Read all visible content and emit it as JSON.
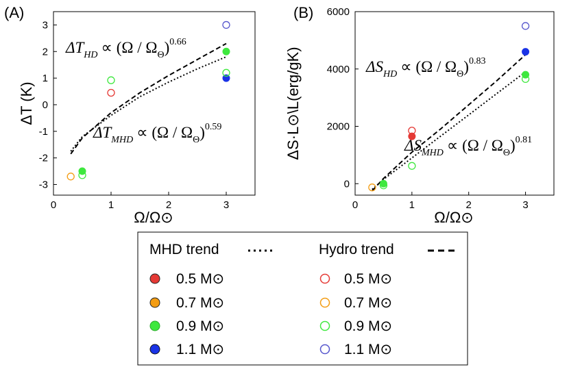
{
  "chart_data": [
    {
      "panel": "(A)",
      "type": "scatter",
      "xlabel": "Ω/Ω⊙",
      "ylabel": "ΔT (K)",
      "xlim": [
        0,
        3.5
      ],
      "ylim": [
        -3.4,
        3.5
      ],
      "xticks": [
        "0",
        "1",
        "2",
        "3"
      ],
      "yticks": [
        "-3",
        "-2",
        "-1",
        "0",
        "1",
        "2",
        "3"
      ],
      "series": [
        {
          "name": "0.5 M⊙ MHD",
          "kind": "mhd",
          "color": "#e53935",
          "points": []
        },
        {
          "name": "0.7 M⊙ MHD",
          "kind": "mhd",
          "color": "#f39c12",
          "points": []
        },
        {
          "name": "0.9 M⊙ MHD",
          "kind": "mhd",
          "color": "#3ee83e",
          "points": [
            [
              0.5,
              -2.5
            ],
            [
              3,
              2.0
            ]
          ]
        },
        {
          "name": "1.1 M⊙ MHD",
          "kind": "mhd",
          "color": "#1a33e6",
          "points": [
            [
              3,
              1.0
            ]
          ]
        },
        {
          "name": "0.5 M⊙ Hydro",
          "kind": "hydro",
          "color": "#e53935",
          "points": [
            [
              1,
              0.45
            ]
          ]
        },
        {
          "name": "0.7 M⊙ Hydro",
          "kind": "hydro",
          "color": "#f39c12",
          "points": [
            [
              0.3,
              -2.7
            ]
          ]
        },
        {
          "name": "0.9 M⊙ Hydro",
          "kind": "hydro",
          "color": "#3ee83e",
          "points": [
            [
              0.5,
              -2.65
            ],
            [
              1,
              0.92
            ],
            [
              3,
              1.2
            ]
          ]
        },
        {
          "name": "1.1 M⊙ Hydro",
          "kind": "hydro",
          "color": "#5555cc",
          "points": [
            [
              3,
              3.0
            ]
          ]
        }
      ],
      "trends": [
        {
          "name": "Hydro trend",
          "style": "dashed",
          "points": [
            [
              0.3,
              -1.85
            ],
            [
              0.5,
              -1.25
            ],
            [
              1,
              -0.3
            ],
            [
              1.5,
              0.45
            ],
            [
              2,
              1.1
            ],
            [
              2.5,
              1.7
            ],
            [
              3,
              2.3
            ]
          ]
        },
        {
          "name": "MHD trend",
          "style": "dotted",
          "points": [
            [
              0.3,
              -1.75
            ],
            [
              0.5,
              -1.2
            ],
            [
              1,
              -0.4
            ],
            [
              1.5,
              0.3
            ],
            [
              2,
              0.85
            ],
            [
              2.5,
              1.35
            ],
            [
              3,
              1.8
            ]
          ]
        }
      ],
      "annotations": [
        {
          "lhs": "ΔT",
          "sub": "HD",
          "rhs": "∝ (Ω / Ω",
          "theta": "Θ",
          "close": ")",
          "exp": "0.66"
        },
        {
          "lhs": "ΔT",
          "sub": "MHD",
          "rhs": "∝ (Ω / Ω",
          "theta": "Θ",
          "close": ")",
          "exp": "0.59"
        }
      ]
    },
    {
      "panel": "(B)",
      "type": "scatter",
      "xlabel": "Ω/Ω⊙",
      "ylabel": "ΔS·L⊙\\L(erg/gK)",
      "xlim": [
        0,
        3.5
      ],
      "ylim": [
        -400,
        6000
      ],
      "xticks": [
        "0",
        "1",
        "2",
        "3"
      ],
      "yticks": [
        "0",
        "2000",
        "4000",
        "6000"
      ],
      "series": [
        {
          "name": "0.5 M⊙ MHD",
          "kind": "mhd",
          "color": "#e53935",
          "points": [
            [
              1,
              1650
            ]
          ]
        },
        {
          "name": "0.7 M⊙ MHD",
          "kind": "mhd",
          "color": "#f39c12",
          "points": []
        },
        {
          "name": "0.9 M⊙ MHD",
          "kind": "mhd",
          "color": "#3ee83e",
          "points": [
            [
              0.5,
              0
            ],
            [
              3,
              3800
            ]
          ]
        },
        {
          "name": "1.1 M⊙ MHD",
          "kind": "mhd",
          "color": "#1a33e6",
          "points": [
            [
              3,
              4600
            ]
          ]
        },
        {
          "name": "0.5 M⊙ Hydro",
          "kind": "hydro",
          "color": "#e53935",
          "points": [
            [
              1,
              1850
            ]
          ]
        },
        {
          "name": "0.7 M⊙ Hydro",
          "kind": "hydro",
          "color": "#f39c12",
          "points": [
            [
              0.3,
              -130
            ]
          ]
        },
        {
          "name": "0.9 M⊙ Hydro",
          "kind": "hydro",
          "color": "#3ee83e",
          "points": [
            [
              0.5,
              -60
            ],
            [
              1,
              620
            ],
            [
              3,
              3650
            ]
          ]
        },
        {
          "name": "1.1 M⊙ Hydro",
          "kind": "hydro",
          "color": "#5555cc",
          "points": [
            [
              3,
              5500
            ]
          ]
        }
      ],
      "trends": [
        {
          "name": "Hydro trend",
          "style": "dashed",
          "points": [
            [
              0.3,
              -250
            ],
            [
              0.5,
              180
            ],
            [
              1,
              1100
            ],
            [
              1.5,
              1900
            ],
            [
              2,
              2750
            ],
            [
              2.5,
              3600
            ],
            [
              3,
              4500
            ]
          ]
        },
        {
          "name": "MHD trend",
          "style": "dotted",
          "points": [
            [
              0.3,
              -200
            ],
            [
              0.5,
              150
            ],
            [
              1,
              900
            ],
            [
              1.5,
              1650
            ],
            [
              2,
              2400
            ],
            [
              2.5,
              3150
            ],
            [
              3,
              3900
            ]
          ]
        }
      ],
      "annotations": [
        {
          "lhs": "ΔS",
          "sub": "HD",
          "rhs": "∝ (Ω / Ω",
          "theta": "Θ",
          "close": ")",
          "exp": "0.83"
        },
        {
          "lhs": "ΔS",
          "sub": "MHD",
          "rhs": "∝ (Ω / Ω",
          "theta": "Θ",
          "close": ")",
          "exp": "0.81"
        }
      ]
    }
  ],
  "legend": {
    "mhd_title": "MHD trend",
    "hydro_title": "Hydro trend",
    "mhd_items": [
      {
        "label": "0.5 M⊙",
        "color": "#e53935"
      },
      {
        "label": "0.7 M⊙",
        "color": "#f39c12"
      },
      {
        "label": "0.9 M⊙",
        "color": "#3ee83e"
      },
      {
        "label": "1.1 M⊙",
        "color": "#1a33e6"
      }
    ],
    "hydro_items": [
      {
        "label": "0.5 M⊙",
        "color": "#e53935"
      },
      {
        "label": "0.7 M⊙",
        "color": "#f39c12"
      },
      {
        "label": "0.9 M⊙",
        "color": "#3ee83e"
      },
      {
        "label": "1.1 M⊙",
        "color": "#5555cc"
      }
    ]
  }
}
